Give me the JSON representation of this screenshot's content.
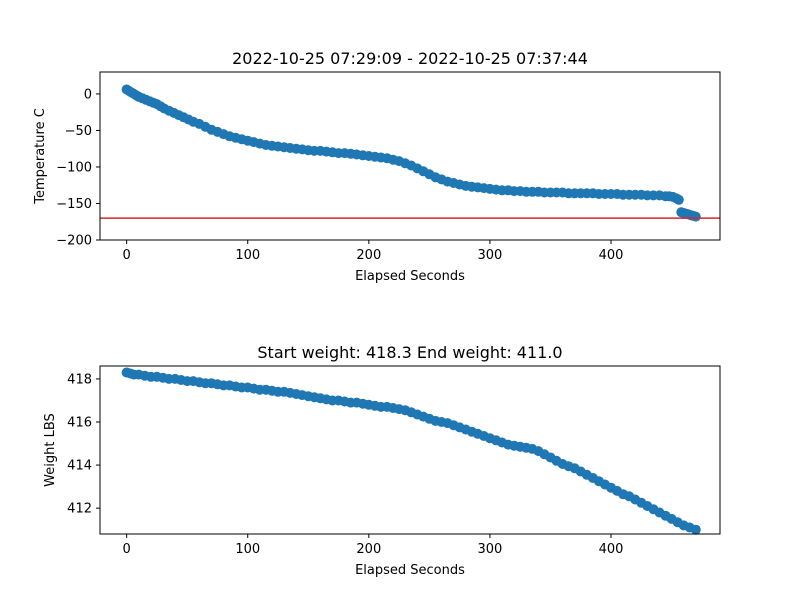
{
  "chart_data": [
    {
      "type": "scatter",
      "title": "2022-10-25 07:29:09 - 2022-10-25 07:37:44",
      "xlabel": "Elapsed Seconds",
      "ylabel": "Temperature C",
      "xlim": [
        -22,
        490
      ],
      "ylim": [
        -200,
        30
      ],
      "xticks": [
        0,
        100,
        200,
        300,
        400
      ],
      "yticks": [
        0,
        -50,
        -100,
        -150,
        -200
      ],
      "grid": false,
      "marker_color": "#1f77b4",
      "reference_line": {
        "y": -170,
        "color": "#d62728"
      },
      "series": [
        {
          "points": [
            [
              0,
              6
            ],
            [
              2,
              4
            ],
            [
              4,
              2
            ],
            [
              6,
              0
            ],
            [
              8,
              -2
            ],
            [
              10,
              -4
            ],
            [
              13,
              -6
            ],
            [
              16,
              -8
            ],
            [
              19,
              -10
            ],
            [
              22,
              -12
            ],
            [
              25,
              -14
            ],
            [
              28,
              -17
            ],
            [
              31,
              -20
            ],
            [
              35,
              -23
            ],
            [
              39,
              -26
            ],
            [
              43,
              -29
            ],
            [
              47,
              -32
            ],
            [
              51,
              -35
            ],
            [
              55,
              -38
            ],
            [
              60,
              -41
            ],
            [
              65,
              -45
            ],
            [
              70,
              -49
            ],
            [
              75,
              -52
            ],
            [
              80,
              -55
            ],
            [
              85,
              -58
            ],
            [
              90,
              -60
            ],
            [
              95,
              -62
            ],
            [
              100,
              -64
            ],
            [
              105,
              -66
            ],
            [
              110,
              -68
            ],
            [
              115,
              -70
            ],
            [
              120,
              -71
            ],
            [
              125,
              -72
            ],
            [
              130,
              -73
            ],
            [
              135,
              -74
            ],
            [
              140,
              -75
            ],
            [
              145,
              -76
            ],
            [
              150,
              -77
            ],
            [
              155,
              -78
            ],
            [
              160,
              -78
            ],
            [
              165,
              -79
            ],
            [
              170,
              -80
            ],
            [
              175,
              -81
            ],
            [
              180,
              -81
            ],
            [
              185,
              -82
            ],
            [
              190,
              -83
            ],
            [
              195,
              -84
            ],
            [
              200,
              -85
            ],
            [
              205,
              -86
            ],
            [
              210,
              -87
            ],
            [
              215,
              -88
            ],
            [
              220,
              -90
            ],
            [
              225,
              -92
            ],
            [
              230,
              -95
            ],
            [
              235,
              -98
            ],
            [
              240,
              -102
            ],
            [
              245,
              -106
            ],
            [
              250,
              -110
            ],
            [
              255,
              -114
            ],
            [
              260,
              -117
            ],
            [
              265,
              -120
            ],
            [
              270,
              -122
            ],
            [
              275,
              -124
            ],
            [
              280,
              -126
            ],
            [
              285,
              -127
            ],
            [
              290,
              -128
            ],
            [
              295,
              -129
            ],
            [
              300,
              -130
            ],
            [
              305,
              -131
            ],
            [
              310,
              -132
            ],
            [
              315,
              -132
            ],
            [
              320,
              -133
            ],
            [
              325,
              -133
            ],
            [
              330,
              -134
            ],
            [
              335,
              -134
            ],
            [
              340,
              -134
            ],
            [
              345,
              -135
            ],
            [
              350,
              -135
            ],
            [
              355,
              -135
            ],
            [
              360,
              -135
            ],
            [
              365,
              -136
            ],
            [
              370,
              -136
            ],
            [
              375,
              -136
            ],
            [
              380,
              -136
            ],
            [
              385,
              -136
            ],
            [
              390,
              -137
            ],
            [
              395,
              -137
            ],
            [
              400,
              -137
            ],
            [
              405,
              -137
            ],
            [
              410,
              -138
            ],
            [
              415,
              -138
            ],
            [
              420,
              -138
            ],
            [
              425,
              -138
            ],
            [
              430,
              -139
            ],
            [
              435,
              -139
            ],
            [
              440,
              -139
            ],
            [
              445,
              -140
            ],
            [
              448,
              -140
            ],
            [
              451,
              -141
            ],
            [
              454,
              -143
            ],
            [
              456,
              -145
            ],
            [
              458,
              -162
            ],
            [
              460,
              -163
            ],
            [
              462,
              -164
            ],
            [
              464,
              -165
            ],
            [
              466,
              -166
            ],
            [
              468,
              -167
            ],
            [
              470,
              -168
            ]
          ]
        }
      ]
    },
    {
      "type": "scatter",
      "title": "Start weight: 418.3 End weight: 411.0",
      "xlabel": "Elapsed Seconds",
      "ylabel": "Weight LBS",
      "xlim": [
        -22,
        490
      ],
      "ylim": [
        410.8,
        418.6
      ],
      "xticks": [
        0,
        100,
        200,
        300,
        400
      ],
      "yticks": [
        418,
        416,
        414,
        412
      ],
      "grid": false,
      "marker_color": "#1f77b4",
      "series": [
        {
          "points": [
            [
              0,
              418.3
            ],
            [
              3,
              418.25
            ],
            [
              6,
              418.2
            ],
            [
              10,
              418.2
            ],
            [
              15,
              418.15
            ],
            [
              20,
              418.1
            ],
            [
              25,
              418.1
            ],
            [
              30,
              418.05
            ],
            [
              35,
              418.0
            ],
            [
              40,
              418.0
            ],
            [
              45,
              417.95
            ],
            [
              50,
              417.9
            ],
            [
              55,
              417.9
            ],
            [
              60,
              417.85
            ],
            [
              65,
              417.8
            ],
            [
              70,
              417.8
            ],
            [
              75,
              417.75
            ],
            [
              80,
              417.7
            ],
            [
              85,
              417.7
            ],
            [
              90,
              417.65
            ],
            [
              95,
              417.6
            ],
            [
              100,
              417.6
            ],
            [
              105,
              417.55
            ],
            [
              110,
              417.5
            ],
            [
              115,
              417.5
            ],
            [
              120,
              417.45
            ],
            [
              125,
              417.4
            ],
            [
              130,
              417.4
            ],
            [
              135,
              417.35
            ],
            [
              140,
              417.3
            ],
            [
              145,
              417.25
            ],
            [
              150,
              417.2
            ],
            [
              155,
              417.15
            ],
            [
              160,
              417.1
            ],
            [
              165,
              417.05
            ],
            [
              170,
              417.0
            ],
            [
              175,
              417.0
            ],
            [
              180,
              416.95
            ],
            [
              185,
              416.9
            ],
            [
              190,
              416.9
            ],
            [
              195,
              416.85
            ],
            [
              200,
              416.8
            ],
            [
              205,
              416.75
            ],
            [
              210,
              416.7
            ],
            [
              215,
              416.7
            ],
            [
              220,
              416.65
            ],
            [
              225,
              416.6
            ],
            [
              230,
              416.55
            ],
            [
              235,
              416.45
            ],
            [
              240,
              416.35
            ],
            [
              245,
              416.25
            ],
            [
              250,
              416.15
            ],
            [
              255,
              416.05
            ],
            [
              260,
              416.0
            ],
            [
              265,
              415.95
            ],
            [
              270,
              415.85
            ],
            [
              275,
              415.75
            ],
            [
              280,
              415.65
            ],
            [
              285,
              415.55
            ],
            [
              290,
              415.45
            ],
            [
              295,
              415.35
            ],
            [
              300,
              415.25
            ],
            [
              305,
              415.15
            ],
            [
              310,
              415.05
            ],
            [
              315,
              414.95
            ],
            [
              320,
              414.9
            ],
            [
              325,
              414.85
            ],
            [
              330,
              414.8
            ],
            [
              335,
              414.75
            ],
            [
              340,
              414.65
            ],
            [
              345,
              414.5
            ],
            [
              350,
              414.35
            ],
            [
              355,
              414.2
            ],
            [
              360,
              414.05
            ],
            [
              365,
              413.95
            ],
            [
              370,
              413.85
            ],
            [
              375,
              413.7
            ],
            [
              380,
              413.55
            ],
            [
              385,
              413.4
            ],
            [
              390,
              413.25
            ],
            [
              395,
              413.1
            ],
            [
              400,
              412.95
            ],
            [
              405,
              412.8
            ],
            [
              410,
              412.65
            ],
            [
              415,
              412.55
            ],
            [
              420,
              412.4
            ],
            [
              425,
              412.25
            ],
            [
              430,
              412.1
            ],
            [
              435,
              411.95
            ],
            [
              440,
              411.8
            ],
            [
              445,
              411.65
            ],
            [
              450,
              411.5
            ],
            [
              455,
              411.35
            ],
            [
              460,
              411.2
            ],
            [
              465,
              411.1
            ],
            [
              470,
              411.0
            ]
          ]
        }
      ]
    }
  ]
}
